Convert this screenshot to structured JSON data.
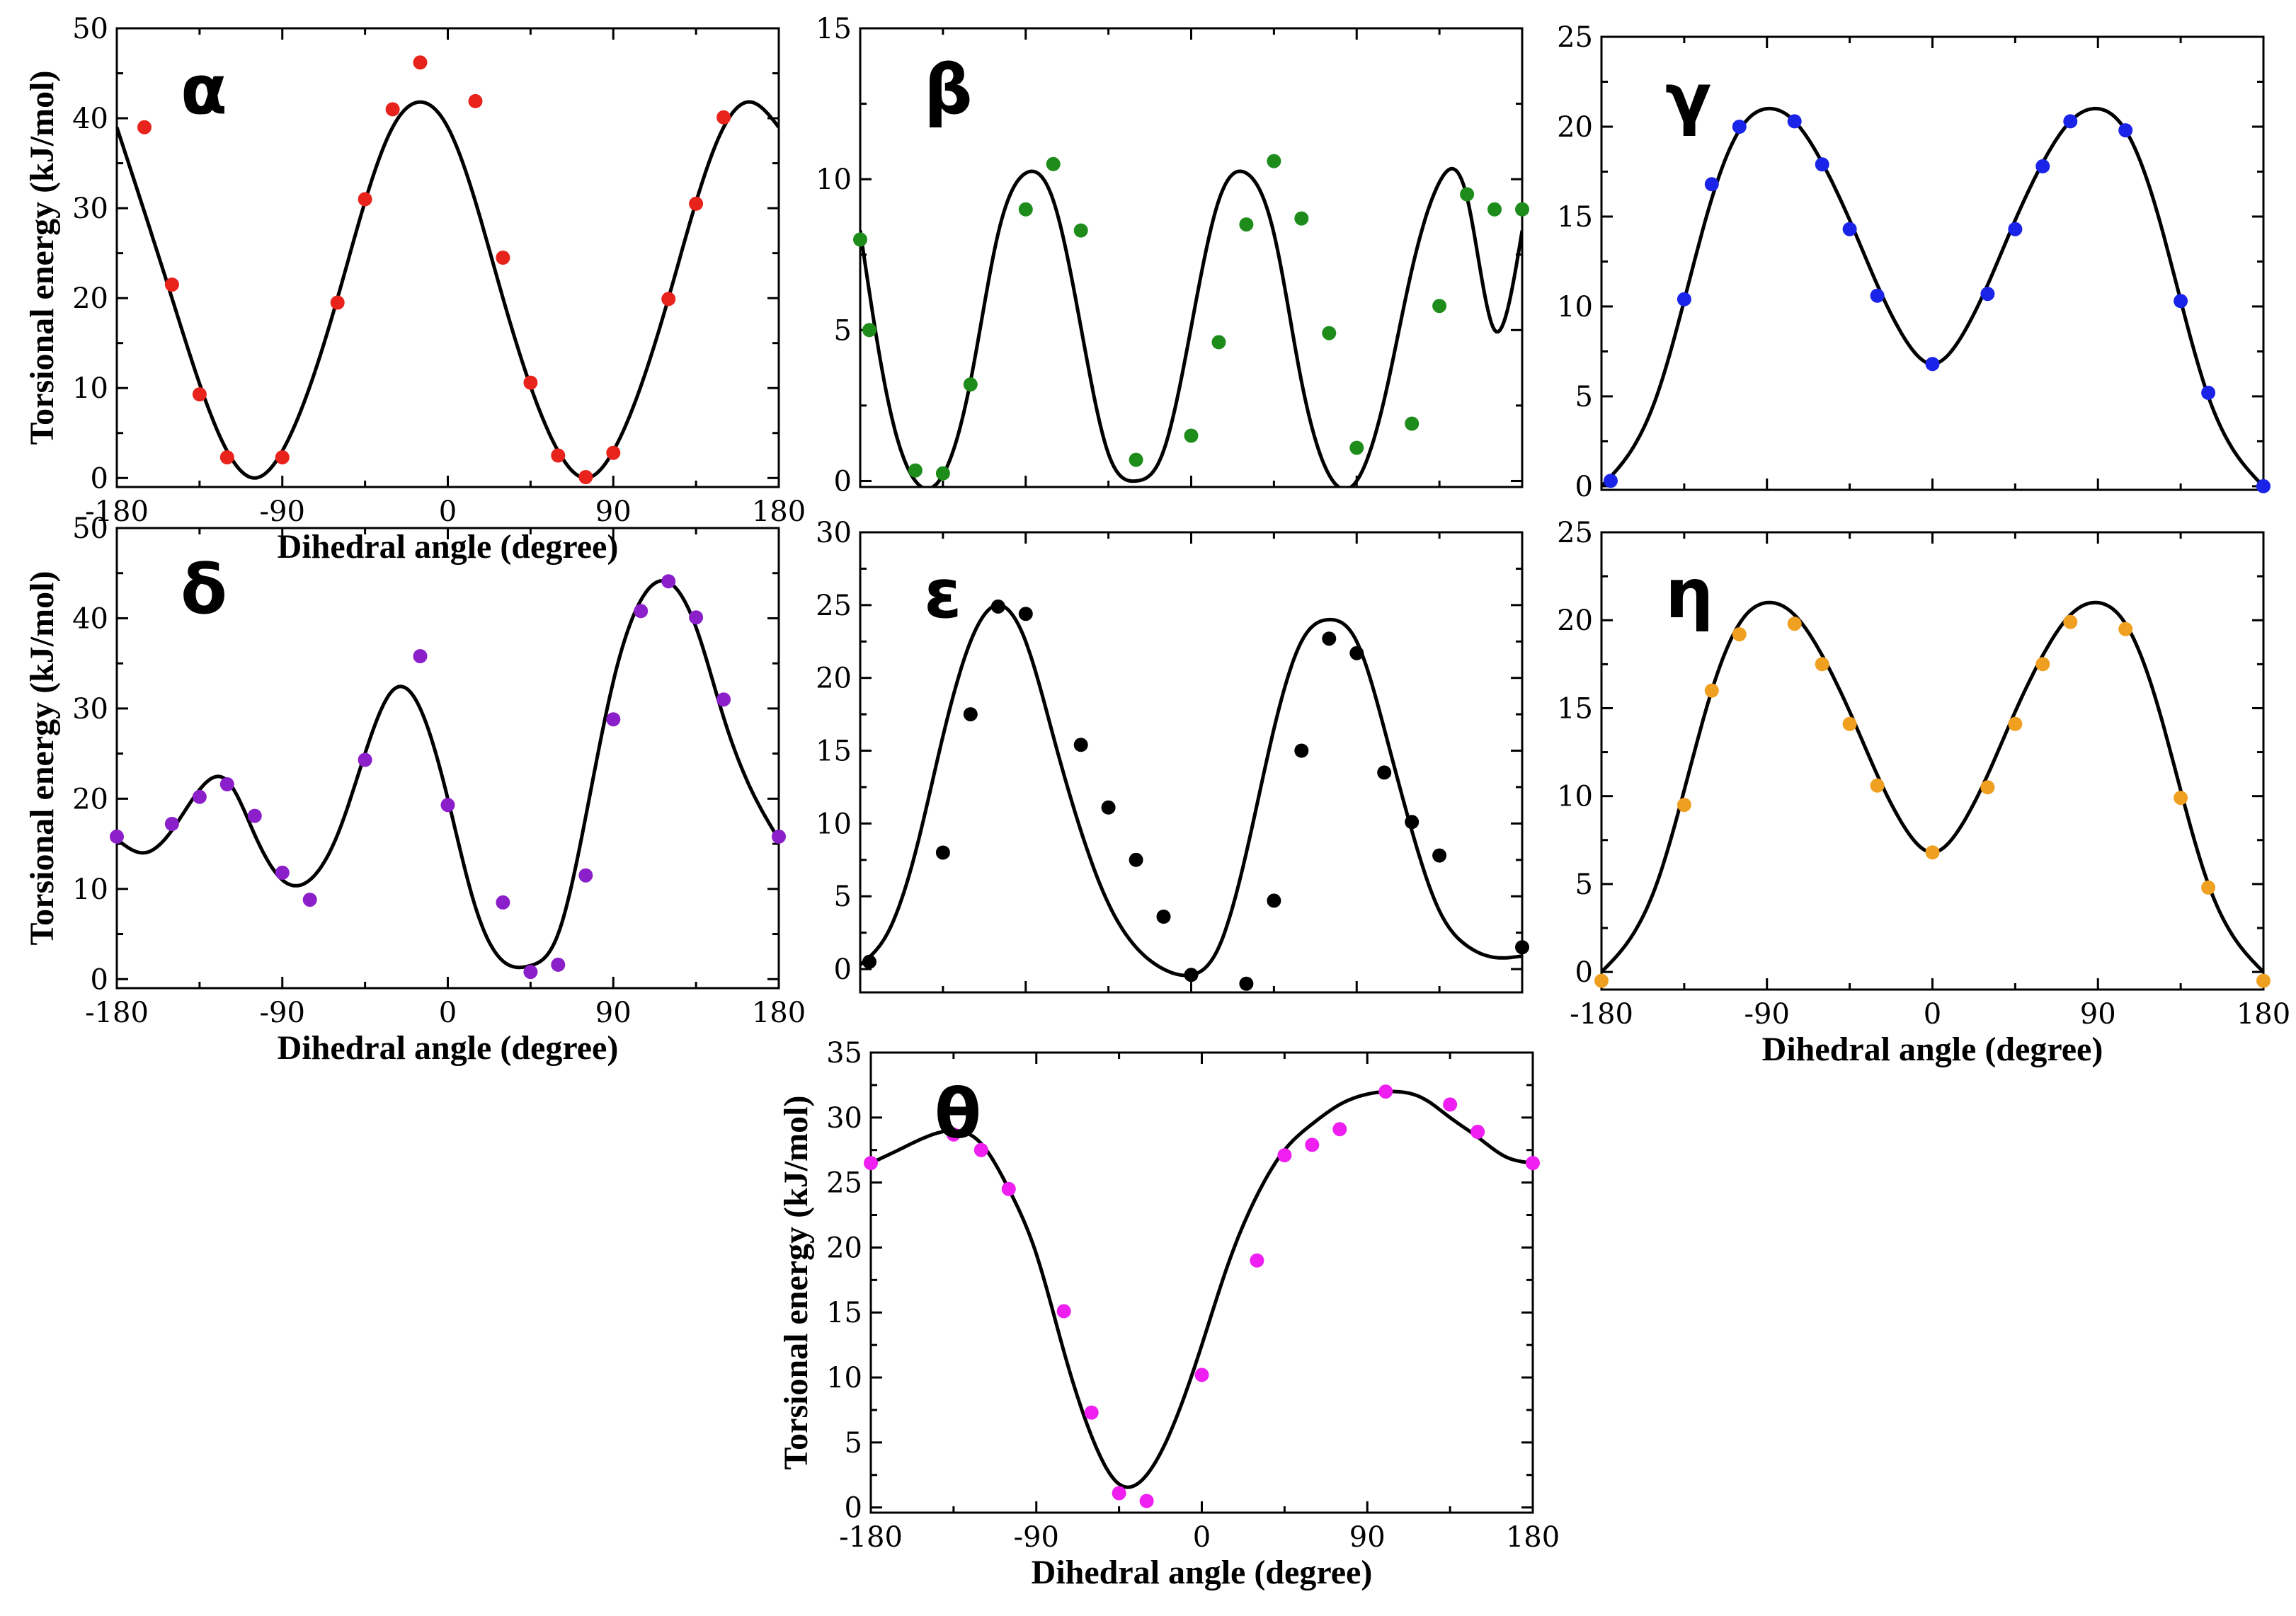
{
  "chart_data": [
    {
      "id": "alpha",
      "type": "scatter",
      "title": "α",
      "color": "#e8231c",
      "xlabel": "Dihedral angle (degree)",
      "ylabel": "Torsional energy (kJ/mol)",
      "xlim": [
        -180,
        180
      ],
      "ylim": [
        -1,
        50
      ],
      "xticks": [
        "-180",
        "-90",
        "0",
        "90",
        "180"
      ],
      "yticks": [
        "0",
        "10",
        "20",
        "30",
        "40",
        "50"
      ],
      "points": {
        "x": [
          -165,
          -150,
          -135,
          -120,
          -90,
          -60,
          -45,
          -30,
          -15,
          15,
          30,
          45,
          60,
          75,
          90,
          120,
          135,
          150
        ],
        "y": [
          39,
          21.5,
          9.3,
          2.3,
          2.3,
          19.5,
          31,
          41,
          46.2,
          41.9,
          24.5,
          10.6,
          2.5,
          0.1,
          2.8,
          19.9,
          30.5,
          40.1
        ]
      },
      "curve": {
        "x": [
          -180,
          -150,
          -120,
          -105,
          -90,
          -60,
          -30,
          -15,
          0,
          30,
          60,
          75,
          90,
          120,
          150,
          165,
          180
        ],
        "y": [
          39,
          20,
          3,
          0,
          3,
          20,
          39,
          41.8,
          39,
          20,
          3,
          0,
          3,
          20,
          39,
          41.8,
          39
        ]
      }
    },
    {
      "id": "beta",
      "type": "scatter",
      "title": "β",
      "color": "#1e8c1a",
      "xlabel": "",
      "ylabel": "",
      "xlim": [
        -180,
        180
      ],
      "ylim": [
        -0.2,
        15
      ],
      "xticks": [],
      "yticks": [
        "0",
        "5",
        "10",
        "15"
      ],
      "points": {
        "x": [
          -180,
          -175,
          -150,
          -135,
          -120,
          -90,
          -75,
          -60,
          -30,
          0,
          15,
          30,
          45,
          60,
          75,
          90,
          120,
          135,
          150,
          165,
          180
        ],
        "y": [
          8,
          5,
          0.35,
          0.25,
          3.2,
          9,
          10.5,
          8.3,
          0.7,
          1.5,
          4.6,
          8.5,
          10.6,
          8.7,
          4.9,
          1.1,
          1.9,
          5.8,
          9.5,
          9,
          9
        ]
      },
      "curve": {
        "x": [
          -180,
          -165,
          -150,
          -135,
          -120,
          -105,
          -90,
          -75,
          -60,
          -45,
          -30,
          -15,
          0,
          15,
          30,
          45,
          60,
          75,
          90,
          105,
          120,
          135,
          150,
          165,
          180
        ],
        "y": [
          8.3,
          2.7,
          0.0,
          0.2,
          3.3,
          8.2,
          10.2,
          9.3,
          5.1,
          0.9,
          0.0,
          1.0,
          5.1,
          9.3,
          10.2,
          8.2,
          3.3,
          0.2,
          0.0,
          2.7,
          7.0,
          9.9,
          9.4,
          5.0,
          8.3
        ]
      }
    },
    {
      "id": "gamma",
      "type": "scatter",
      "title": "γ",
      "color": "#1a23e8",
      "xlabel": "",
      "ylabel": "",
      "xlim": [
        -180,
        180
      ],
      "ylim": [
        -0.2,
        25
      ],
      "xticks": [],
      "yticks": [
        "0",
        "5",
        "10",
        "15",
        "20",
        "25"
      ],
      "points": {
        "x": [
          -175,
          -135,
          -120,
          -105,
          -75,
          -60,
          -45,
          -30,
          0,
          30,
          45,
          60,
          75,
          105,
          135,
          150,
          180
        ],
        "y": [
          0.3,
          10.4,
          16.8,
          20,
          20.3,
          17.9,
          14.3,
          10.6,
          6.8,
          10.7,
          14.3,
          17.8,
          20.3,
          19.8,
          10.3,
          5.2,
          0
        ]
      },
      "curve": {
        "x": [
          -180,
          -150,
          -120,
          -105,
          -90,
          -75,
          -60,
          -45,
          -30,
          -15,
          0,
          15,
          30,
          45,
          60,
          75,
          90,
          105,
          120,
          150,
          180
        ],
        "y": [
          0,
          5,
          16,
          19.8,
          21,
          20.3,
          18,
          14.8,
          11.2,
          8.2,
          6.8,
          8.2,
          11.2,
          14.8,
          18,
          20.3,
          21,
          19.8,
          16,
          5,
          0
        ]
      }
    },
    {
      "id": "delta",
      "type": "scatter",
      "title": "δ",
      "color": "#8b1fc9",
      "xlabel": "Dihedral angle (degree)",
      "ylabel": "Torsional energy (kJ/mol)",
      "xlim": [
        -180,
        180
      ],
      "ylim": [
        -1,
        50
      ],
      "xticks": [
        "-180",
        "-90",
        "0",
        "90",
        "180"
      ],
      "yticks": [
        "0",
        "10",
        "20",
        "30",
        "40",
        "50"
      ],
      "points": {
        "x": [
          -180,
          -150,
          -135,
          -120,
          -105,
          -90,
          -75,
          -45,
          -15,
          0,
          30,
          45,
          60,
          75,
          90,
          105,
          120,
          135,
          150,
          180
        ],
        "y": [
          15.8,
          17.2,
          20.2,
          21.6,
          18.1,
          11.8,
          8.8,
          24.3,
          35.8,
          19.3,
          8.5,
          0.8,
          1.6,
          11.5,
          28.8,
          40.8,
          44.1,
          40.1,
          31,
          15.8
        ]
      },
      "curve": {
        "x": [
          -180,
          -165,
          -150,
          -135,
          -120,
          -105,
          -90,
          -75,
          -60,
          -45,
          -30,
          -15,
          0,
          15,
          30,
          45,
          60,
          75,
          90,
          105,
          120,
          135,
          150,
          165,
          180
        ],
        "y": [
          15.5,
          14,
          16.5,
          21,
          22,
          16,
          11,
          11,
          16,
          25,
          32,
          30,
          20,
          8,
          2,
          1.5,
          5,
          18,
          33,
          42,
          44,
          39,
          29,
          21,
          15.5
        ]
      }
    },
    {
      "id": "epsilon",
      "type": "scatter",
      "title": "ε",
      "color": "#000000",
      "xlabel": "",
      "ylabel": "",
      "xlim": [
        -180,
        180
      ],
      "ylim": [
        -1.6,
        30
      ],
      "xticks": [],
      "yticks": [
        "0",
        "5",
        "10",
        "15",
        "20",
        "25",
        "30"
      ],
      "points": {
        "x": [
          -175,
          -135,
          -120,
          -105,
          -90,
          -60,
          -45,
          -30,
          -15,
          0,
          30,
          45,
          60,
          75,
          90,
          105,
          120,
          135,
          180
        ],
        "y": [
          0.5,
          8,
          17.5,
          24.9,
          24.4,
          15.4,
          11.1,
          7.5,
          3.6,
          -0.4,
          -1,
          4.7,
          15,
          22.7,
          21.7,
          13.5,
          10.1,
          7.8,
          1.5
        ]
      },
      "curve": {
        "x": [
          -180,
          -165,
          -150,
          -135,
          -120,
          -105,
          -90,
          -75,
          -60,
          -45,
          -30,
          -15,
          0,
          15,
          30,
          45,
          60,
          75,
          90,
          105,
          120,
          135,
          150,
          165,
          180
        ],
        "y": [
          0.3,
          2.5,
          8,
          16,
          22.5,
          25,
          22.5,
          16,
          9.5,
          4.5,
          1.5,
          0,
          -0.4,
          1.5,
          8,
          16.5,
          22.5,
          24,
          22.5,
          16.5,
          9.5,
          4,
          1.6,
          0.8,
          0.9
        ]
      }
    },
    {
      "id": "eta",
      "type": "scatter",
      "title": "η",
      "color": "#f0a020",
      "xlabel": "Dihedral angle (degree)",
      "ylabel": "",
      "xlim": [
        -180,
        180
      ],
      "ylim": [
        -1,
        25
      ],
      "xticks": [
        "-180",
        "-90",
        "0",
        "90",
        "180"
      ],
      "yticks": [
        "0",
        "5",
        "10",
        "15",
        "20",
        "25"
      ],
      "points": {
        "x": [
          -180,
          -135,
          -120,
          -105,
          -75,
          -60,
          -45,
          -30,
          0,
          30,
          45,
          60,
          75,
          105,
          135,
          150,
          180
        ],
        "y": [
          -0.5,
          9.5,
          16,
          19.2,
          19.8,
          17.5,
          14.1,
          10.6,
          6.8,
          10.5,
          14.1,
          17.5,
          19.9,
          19.5,
          9.9,
          4.8,
          -0.5
        ]
      },
      "curve": {
        "x": [
          -180,
          -150,
          -120,
          -105,
          -90,
          -75,
          -60,
          -45,
          -30,
          -15,
          0,
          15,
          30,
          45,
          60,
          75,
          90,
          105,
          120,
          150,
          180
        ],
        "y": [
          0,
          5,
          16,
          19.8,
          21,
          20.3,
          18,
          14.8,
          11.2,
          8.2,
          6.8,
          8.2,
          11.2,
          14.8,
          18,
          20.3,
          21,
          19.8,
          16,
          5,
          0
        ]
      }
    },
    {
      "id": "theta",
      "type": "scatter",
      "title": "θ",
      "color": "#ee1ff0",
      "xlabel": "Dihedral angle (degree)",
      "ylabel": "Torsional energy (kJ/mol)",
      "xlim": [
        -180,
        180
      ],
      "ylim": [
        -0.4,
        35
      ],
      "xticks": [
        "-180",
        "-90",
        "0",
        "90",
        "180"
      ],
      "yticks": [
        "0",
        "5",
        "10",
        "15",
        "20",
        "25",
        "30",
        "35"
      ],
      "points": {
        "x": [
          -180,
          -135,
          -120,
          -105,
          -75,
          -60,
          -45,
          -30,
          0,
          30,
          45,
          60,
          75,
          100,
          135,
          150,
          180
        ],
        "y": [
          26.5,
          28.7,
          27.5,
          24.5,
          15.1,
          7.3,
          1.1,
          0.5,
          10.2,
          19,
          27.1,
          27.9,
          29.1,
          32,
          31,
          28.9,
          26.5
        ]
      },
      "curve": {
        "x": [
          -180,
          -165,
          -150,
          -135,
          -120,
          -105,
          -90,
          -75,
          -60,
          -45,
          -30,
          -15,
          0,
          15,
          30,
          45,
          60,
          75,
          90,
          105,
          120,
          135,
          150,
          165,
          180
        ],
        "y": [
          26.5,
          27.5,
          28.5,
          29,
          28,
          24.5,
          19.5,
          12,
          5.5,
          1.8,
          2.5,
          6.5,
          12.5,
          19,
          24,
          27.5,
          29.5,
          31,
          31.8,
          32,
          31.5,
          30,
          28.5,
          27,
          26.5
        ]
      }
    }
  ]
}
